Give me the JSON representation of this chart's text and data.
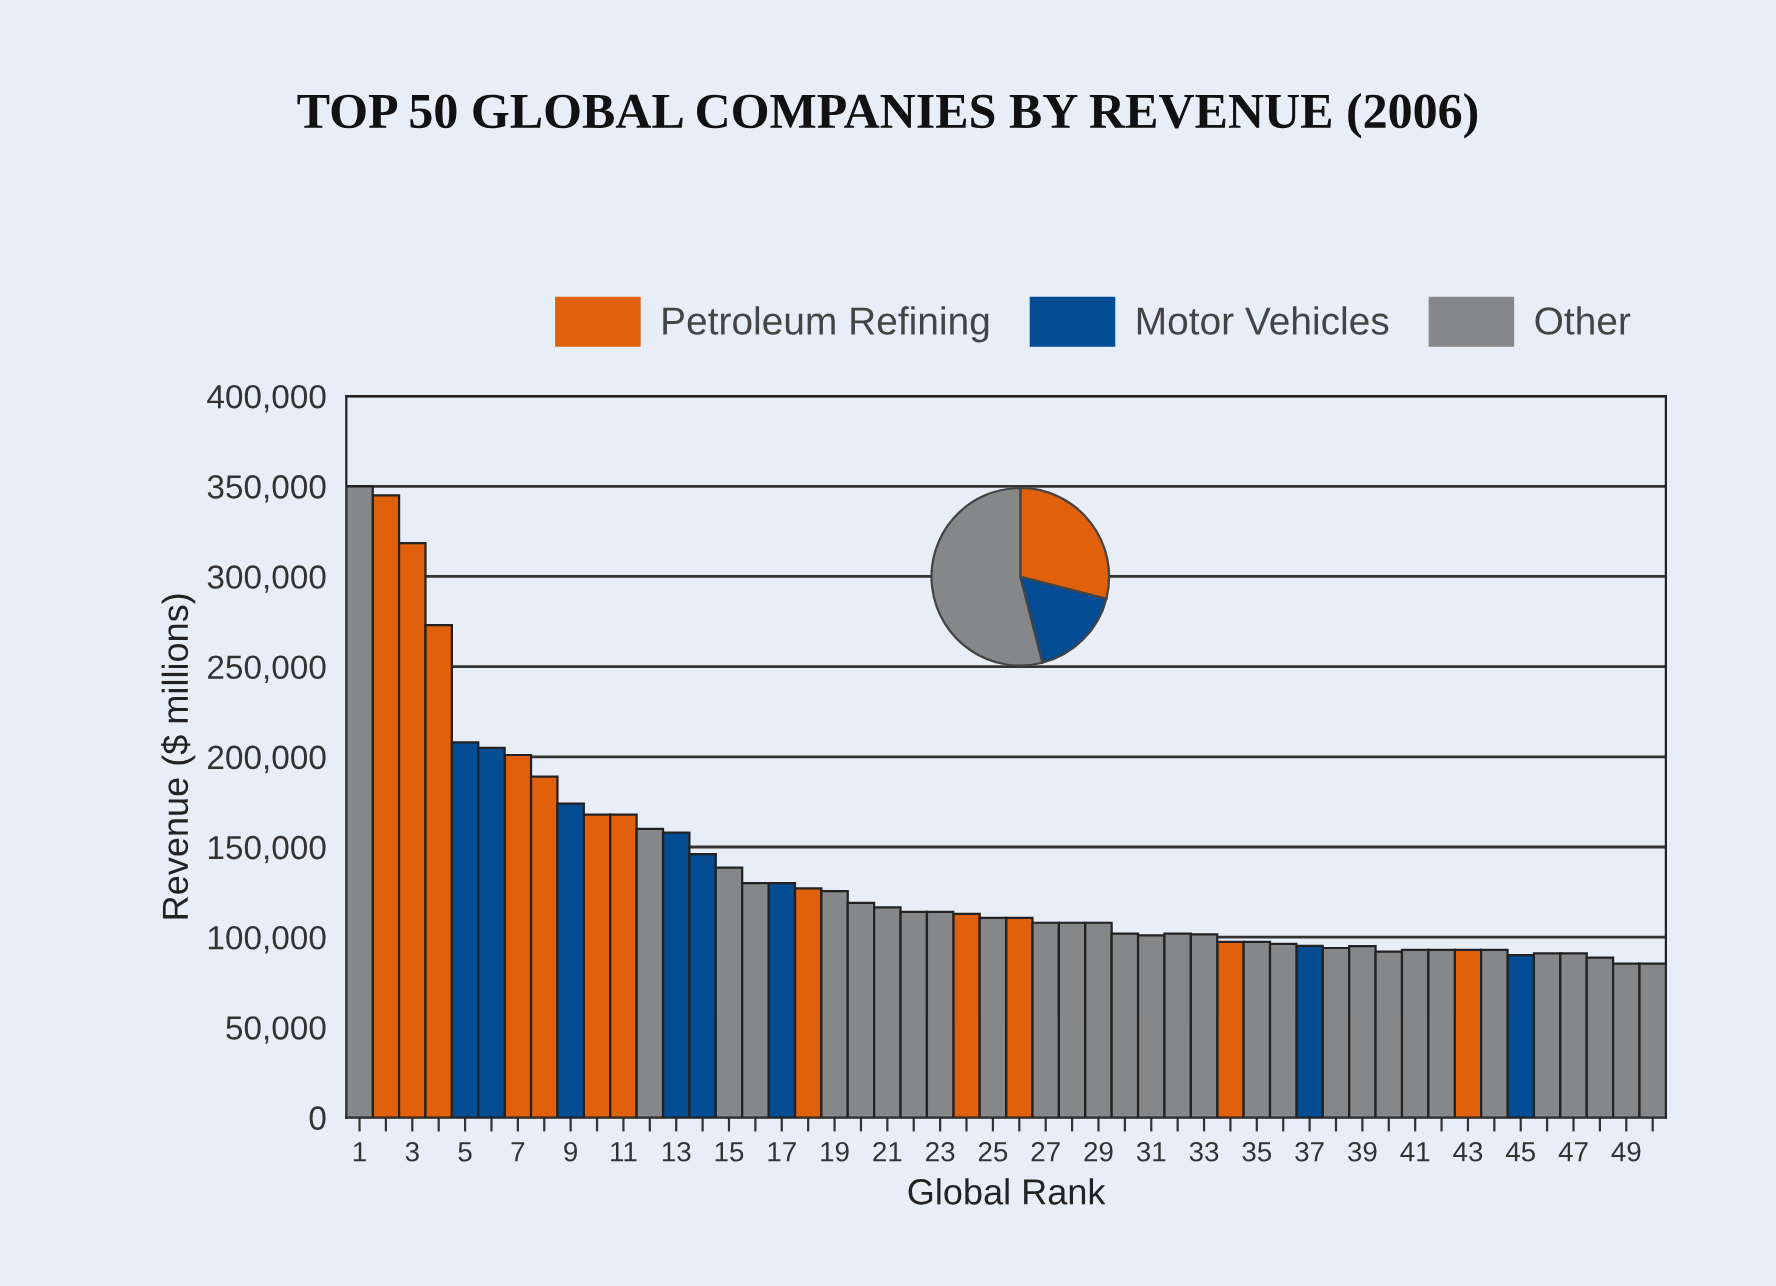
{
  "chart_data": [
    {
      "type": "bar",
      "title": "TOP 50 GLOBAL COMPANIES BY REVENUE (2006)",
      "xlabel": "Global Rank",
      "ylabel": "Revenue ($ millions)",
      "categories": [
        "1",
        null,
        "3",
        null,
        "5",
        null,
        "7",
        null,
        "9",
        null,
        "11",
        null,
        "13",
        null,
        "15",
        null,
        "17",
        null,
        "19",
        null,
        "21",
        null,
        "23",
        null,
        "25",
        null,
        "27",
        null,
        "29",
        null,
        "31",
        null,
        "33",
        null,
        "35",
        null,
        "37",
        null,
        "39",
        null,
        "41",
        null,
        "43",
        null,
        "45",
        null,
        "47",
        null,
        "49",
        null
      ],
      "series": [
        {
          "name": "Petroleum Refining",
          "color": "#e0600c",
          "values": [
            null,
            345000,
            318500,
            273000,
            null,
            null,
            201000,
            189000,
            null,
            168000,
            168000,
            null,
            null,
            null,
            null,
            null,
            null,
            127000,
            null,
            null,
            null,
            null,
            null,
            112900,
            null,
            110700,
            null,
            null,
            null,
            null,
            null,
            null,
            null,
            97400,
            null,
            null,
            null,
            null,
            null,
            null,
            null,
            null,
            93000,
            null,
            null,
            null,
            null,
            null,
            null,
            null
          ]
        },
        {
          "name": "Motor Vehicles",
          "color": "#044d94",
          "values": [
            null,
            null,
            null,
            null,
            208000,
            205000,
            null,
            null,
            174000,
            null,
            null,
            null,
            158000,
            146000,
            null,
            null,
            130000,
            null,
            null,
            null,
            null,
            null,
            null,
            null,
            null,
            null,
            null,
            null,
            null,
            null,
            null,
            null,
            null,
            null,
            null,
            null,
            95200,
            null,
            null,
            null,
            null,
            null,
            null,
            null,
            90000,
            null,
            null,
            null,
            null,
            null
          ]
        },
        {
          "name": "Other",
          "color": "#868788",
          "values": [
            350000,
            null,
            null,
            null,
            null,
            null,
            null,
            null,
            null,
            null,
            null,
            160000,
            null,
            null,
            138500,
            130000,
            null,
            null,
            125500,
            119000,
            116500,
            114000,
            114000,
            null,
            110700,
            null,
            108000,
            108000,
            108000,
            102000,
            101000,
            102000,
            101500,
            null,
            97400,
            96300,
            null,
            94000,
            95000,
            92000,
            93000,
            93000,
            null,
            93000,
            null,
            91000,
            91000,
            88600,
            85300,
            85300
          ]
        }
      ],
      "ylim": [
        0,
        400000
      ],
      "yticks": [
        {
          "value": 0,
          "label": "0"
        },
        {
          "value": 50000,
          "label": "50,000"
        },
        {
          "value": 100000,
          "label": "100,000"
        },
        {
          "value": 150000,
          "label": "150,000"
        },
        {
          "value": 200000,
          "label": "200,000"
        },
        {
          "value": 250000,
          "label": "250,000"
        },
        {
          "value": 300000,
          "label": "300,000"
        },
        {
          "value": 350000,
          "label": "350,000"
        },
        {
          "value": 400000,
          "label": "400,000"
        }
      ],
      "grid": "y",
      "legend": "top"
    },
    {
      "type": "pie",
      "categories": [
        null,
        null,
        null
      ],
      "values": [
        29,
        17,
        54
      ],
      "colors": [
        "#e0600c",
        "#044d94",
        "#868788"
      ]
    }
  ]
}
